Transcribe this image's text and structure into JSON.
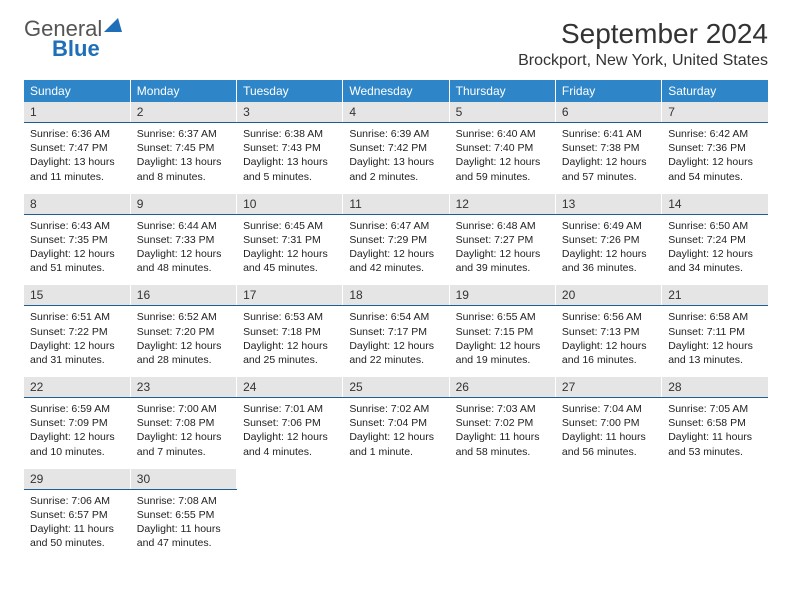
{
  "logo": {
    "text_gray": "General",
    "text_blue": "Blue"
  },
  "title": "September 2024",
  "location": "Brockport, New York, United States",
  "colors": {
    "header_bg": "#2e86c8",
    "header_text": "#ffffff",
    "daynum_bg": "#e5e5e5",
    "daynum_border": "#1f5f8f",
    "body_text": "#222222",
    "logo_blue": "#1f6fb8"
  },
  "day_names": [
    "Sunday",
    "Monday",
    "Tuesday",
    "Wednesday",
    "Thursday",
    "Friday",
    "Saturday"
  ],
  "weeks": [
    [
      {
        "n": "1",
        "sr": "6:36 AM",
        "ss": "7:47 PM",
        "dl": "13 hours and 11 minutes."
      },
      {
        "n": "2",
        "sr": "6:37 AM",
        "ss": "7:45 PM",
        "dl": "13 hours and 8 minutes."
      },
      {
        "n": "3",
        "sr": "6:38 AM",
        "ss": "7:43 PM",
        "dl": "13 hours and 5 minutes."
      },
      {
        "n": "4",
        "sr": "6:39 AM",
        "ss": "7:42 PM",
        "dl": "13 hours and 2 minutes."
      },
      {
        "n": "5",
        "sr": "6:40 AM",
        "ss": "7:40 PM",
        "dl": "12 hours and 59 minutes."
      },
      {
        "n": "6",
        "sr": "6:41 AM",
        "ss": "7:38 PM",
        "dl": "12 hours and 57 minutes."
      },
      {
        "n": "7",
        "sr": "6:42 AM",
        "ss": "7:36 PM",
        "dl": "12 hours and 54 minutes."
      }
    ],
    [
      {
        "n": "8",
        "sr": "6:43 AM",
        "ss": "7:35 PM",
        "dl": "12 hours and 51 minutes."
      },
      {
        "n": "9",
        "sr": "6:44 AM",
        "ss": "7:33 PM",
        "dl": "12 hours and 48 minutes."
      },
      {
        "n": "10",
        "sr": "6:45 AM",
        "ss": "7:31 PM",
        "dl": "12 hours and 45 minutes."
      },
      {
        "n": "11",
        "sr": "6:47 AM",
        "ss": "7:29 PM",
        "dl": "12 hours and 42 minutes."
      },
      {
        "n": "12",
        "sr": "6:48 AM",
        "ss": "7:27 PM",
        "dl": "12 hours and 39 minutes."
      },
      {
        "n": "13",
        "sr": "6:49 AM",
        "ss": "7:26 PM",
        "dl": "12 hours and 36 minutes."
      },
      {
        "n": "14",
        "sr": "6:50 AM",
        "ss": "7:24 PM",
        "dl": "12 hours and 34 minutes."
      }
    ],
    [
      {
        "n": "15",
        "sr": "6:51 AM",
        "ss": "7:22 PM",
        "dl": "12 hours and 31 minutes."
      },
      {
        "n": "16",
        "sr": "6:52 AM",
        "ss": "7:20 PM",
        "dl": "12 hours and 28 minutes."
      },
      {
        "n": "17",
        "sr": "6:53 AM",
        "ss": "7:18 PM",
        "dl": "12 hours and 25 minutes."
      },
      {
        "n": "18",
        "sr": "6:54 AM",
        "ss": "7:17 PM",
        "dl": "12 hours and 22 minutes."
      },
      {
        "n": "19",
        "sr": "6:55 AM",
        "ss": "7:15 PM",
        "dl": "12 hours and 19 minutes."
      },
      {
        "n": "20",
        "sr": "6:56 AM",
        "ss": "7:13 PM",
        "dl": "12 hours and 16 minutes."
      },
      {
        "n": "21",
        "sr": "6:58 AM",
        "ss": "7:11 PM",
        "dl": "12 hours and 13 minutes."
      }
    ],
    [
      {
        "n": "22",
        "sr": "6:59 AM",
        "ss": "7:09 PM",
        "dl": "12 hours and 10 minutes."
      },
      {
        "n": "23",
        "sr": "7:00 AM",
        "ss": "7:08 PM",
        "dl": "12 hours and 7 minutes."
      },
      {
        "n": "24",
        "sr": "7:01 AM",
        "ss": "7:06 PM",
        "dl": "12 hours and 4 minutes."
      },
      {
        "n": "25",
        "sr": "7:02 AM",
        "ss": "7:04 PM",
        "dl": "12 hours and 1 minute."
      },
      {
        "n": "26",
        "sr": "7:03 AM",
        "ss": "7:02 PM",
        "dl": "11 hours and 58 minutes."
      },
      {
        "n": "27",
        "sr": "7:04 AM",
        "ss": "7:00 PM",
        "dl": "11 hours and 56 minutes."
      },
      {
        "n": "28",
        "sr": "7:05 AM",
        "ss": "6:58 PM",
        "dl": "11 hours and 53 minutes."
      }
    ],
    [
      {
        "n": "29",
        "sr": "7:06 AM",
        "ss": "6:57 PM",
        "dl": "11 hours and 50 minutes."
      },
      {
        "n": "30",
        "sr": "7:08 AM",
        "ss": "6:55 PM",
        "dl": "11 hours and 47 minutes."
      },
      null,
      null,
      null,
      null,
      null
    ]
  ],
  "labels": {
    "sunrise": "Sunrise:",
    "sunset": "Sunset:",
    "daylight": "Daylight:"
  }
}
